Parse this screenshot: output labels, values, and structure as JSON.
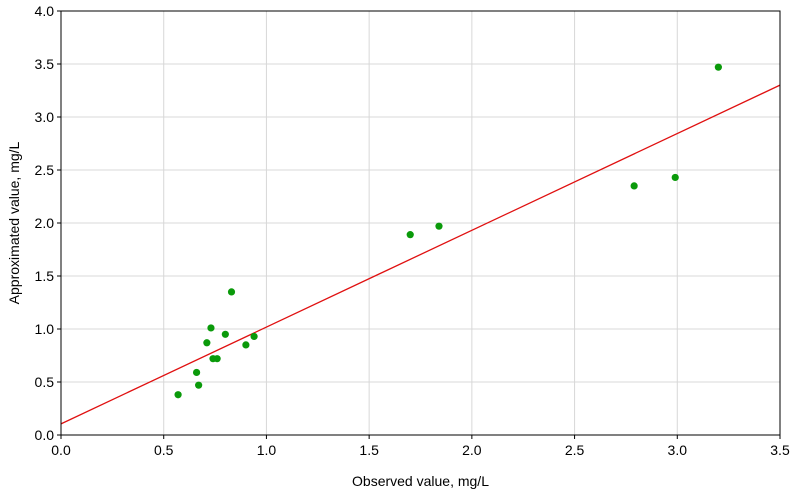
{
  "chart_data": {
    "type": "scatter",
    "xlabel": "Observed value, mg/L",
    "ylabel": "Approximated value, mg/L",
    "xlim": [
      0.0,
      3.5
    ],
    "ylim": [
      0.0,
      4.0
    ],
    "x_ticks": [
      "0.0",
      "0.5",
      "1.0",
      "1.5",
      "2.0",
      "2.5",
      "3.0",
      "3.5"
    ],
    "y_ticks": [
      "0.0",
      "0.5",
      "1.0",
      "1.5",
      "2.0",
      "2.5",
      "3.0",
      "3.5",
      "4.0"
    ],
    "grid": true,
    "point_color": "#0a9a0a",
    "fit_color": "#e01010",
    "grid_color": "#d8d8d8",
    "points": [
      {
        "x": 0.57,
        "y": 0.38
      },
      {
        "x": 0.66,
        "y": 0.59
      },
      {
        "x": 0.67,
        "y": 0.47
      },
      {
        "x": 0.71,
        "y": 0.87
      },
      {
        "x": 0.73,
        "y": 1.01
      },
      {
        "x": 0.74,
        "y": 0.72
      },
      {
        "x": 0.76,
        "y": 0.72
      },
      {
        "x": 0.8,
        "y": 0.95
      },
      {
        "x": 0.83,
        "y": 1.35
      },
      {
        "x": 0.9,
        "y": 0.85
      },
      {
        "x": 0.94,
        "y": 0.93
      },
      {
        "x": 1.7,
        "y": 1.89
      },
      {
        "x": 1.84,
        "y": 1.97
      },
      {
        "x": 2.79,
        "y": 2.35
      },
      {
        "x": 2.99,
        "y": 2.43
      },
      {
        "x": 3.2,
        "y": 3.47
      }
    ],
    "fit_line": {
      "intercept": 0.105,
      "slope": 0.913
    }
  }
}
